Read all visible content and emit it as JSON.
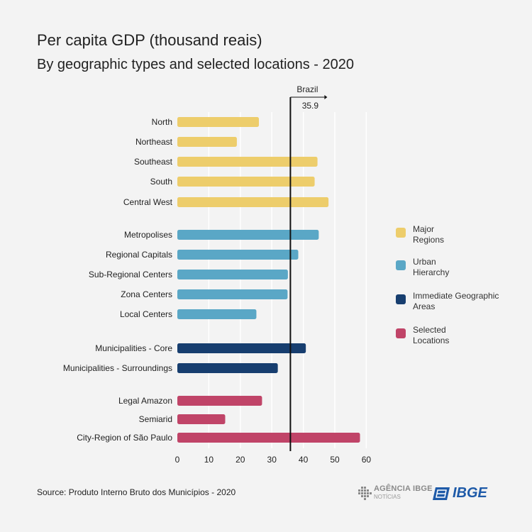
{
  "title": "Per capita GDP (thousand reais)",
  "subtitle": "By geographic types and selected locations - 2020",
  "source": "Source: Produto Interno Bruto dos Municípios - 2020",
  "colors": {
    "major_regions": "#edcd6b",
    "urban_hierarchy": "#5aa7c6",
    "immediate_geographic_areas": "#173e6f",
    "selected_locations": "#c04468"
  },
  "legend": [
    {
      "label": "Major\nRegions",
      "color": "#edcd6b"
    },
    {
      "label": "Urban\nHierarchy",
      "color": "#5aa7c6"
    },
    {
      "label": "Immediate Geographic\nAreas",
      "color": "#173e6f"
    },
    {
      "label": "Selected\nLocations",
      "color": "#c04468"
    }
  ],
  "logos": {
    "agencia_text": "AGÊNCIA IBGE",
    "agencia_sub": "NOTÍCIAS",
    "ibge_text": "IBGE"
  },
  "chart_data": {
    "type": "bar",
    "orientation": "horizontal",
    "title": "Per capita GDP (thousand reais)",
    "subtitle": "By geographic types and selected locations - 2020",
    "xlim": [
      0,
      60
    ],
    "xticks": [
      0,
      10,
      20,
      30,
      40,
      50,
      60
    ],
    "grid": "vertical",
    "legend_position": "right",
    "reference_line": {
      "label": "Brazil",
      "value": 35.9,
      "value_label": "35.9"
    },
    "groups": [
      {
        "name": "Major Regions",
        "color": "#edcd6b",
        "bars": [
          {
            "category": "North",
            "value": 25.9
          },
          {
            "category": "Northeast",
            "value": 18.9
          },
          {
            "category": "Southeast",
            "value": 44.5
          },
          {
            "category": "South",
            "value": 43.6
          },
          {
            "category": "Central West",
            "value": 48.0
          }
        ]
      },
      {
        "name": "Urban Hierarchy",
        "color": "#5aa7c6",
        "bars": [
          {
            "category": "Metropolises",
            "value": 44.9
          },
          {
            "category": "Regional Capitals",
            "value": 38.4
          },
          {
            "category": "Sub-Regional Centers",
            "value": 35.1
          },
          {
            "category": "Zona Centers",
            "value": 35.0
          },
          {
            "category": "Local Centers",
            "value": 25.1
          }
        ]
      },
      {
        "name": "Immediate Geographic Areas",
        "color": "#173e6f",
        "bars": [
          {
            "category": "Municipalities - Core",
            "value": 40.8
          },
          {
            "category": "Municipalities - Surroundings",
            "value": 31.9
          }
        ]
      },
      {
        "name": "Selected Locations",
        "color": "#c04468",
        "bars": [
          {
            "category": "Legal Amazon",
            "value": 26.9
          },
          {
            "category": "Semiarid",
            "value": 15.2
          },
          {
            "category": "City-Region of São Paulo",
            "value": 58.0
          }
        ]
      }
    ]
  }
}
